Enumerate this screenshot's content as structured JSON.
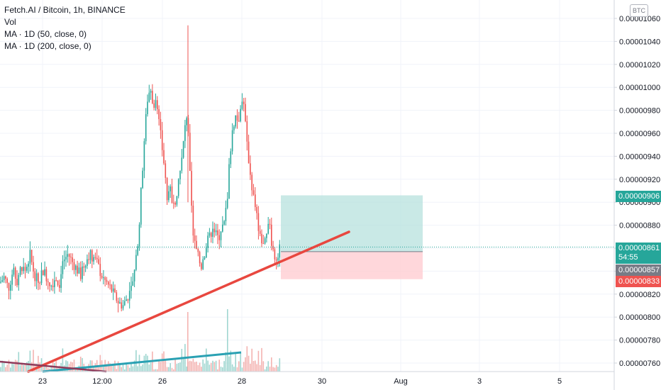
{
  "legend": {
    "title": "Fetch.AI / Bitcoin, 1h, BINANCE",
    "vol": "Vol",
    "ma50": "MA · 1D (50, close, 0)",
    "ma200": "MA · 1D (200, close, 0)"
  },
  "currency_badge": "BTC",
  "price_axis": {
    "ticks": [
      "0.00001060",
      "0.00001040",
      "0.00001020",
      "0.00001000",
      "0.00000980",
      "0.00000960",
      "0.00000940",
      "0.00000920",
      "0.00000900",
      "0.00000880",
      "0.00000860",
      "0.00000840",
      "0.00000820",
      "0.00000800",
      "0.00000780",
      "0.00000760"
    ],
    "tick_values": [
      1060,
      1040,
      1020,
      1000,
      980,
      960,
      940,
      920,
      900,
      880,
      860,
      840,
      820,
      800,
      780,
      760
    ],
    "current_price": "0.00000861",
    "countdown": "54:55",
    "target_price": "0.00000906",
    "entry_price": "0.00000857",
    "stop_price": "0.00000833"
  },
  "time_axis": {
    "labels": [
      "23",
      "12:00",
      "26",
      "28",
      "30",
      "Aug",
      "3",
      "5"
    ]
  },
  "colors": {
    "up": "#26a69a",
    "down": "#ef5350",
    "trendline": "#e8473f",
    "target_zone": "#b2dfdb",
    "stop_zone": "#ffcdd2",
    "ma_teal": "#2aa1b3",
    "ma_maroon": "#8e3a5a",
    "current_price_bg": "#26a69a",
    "entry_bg": "#787b86",
    "stop_bg": "#ef5350",
    "target_bg": "#26a69a"
  },
  "chart_data": {
    "type": "candlestick",
    "title": "Fetch.AI / Bitcoin, 1h, BINANCE",
    "ylim": [
      756,
      1072
    ],
    "y_unit_note_scale": 1e-08,
    "x_labels": [
      "23",
      "12:00",
      "26",
      "28",
      "30",
      "Aug",
      "3",
      "5"
    ],
    "close_path": [
      [
        0,
        830
      ],
      [
        6,
        835
      ],
      [
        12,
        825
      ],
      [
        18,
        840
      ],
      [
        24,
        832
      ],
      [
        30,
        845
      ],
      [
        36,
        840
      ],
      [
        42,
        855
      ],
      [
        48,
        838
      ],
      [
        54,
        830
      ],
      [
        60,
        842
      ],
      [
        66,
        835
      ],
      [
        72,
        828
      ],
      [
        78,
        835
      ],
      [
        84,
        830
      ],
      [
        90,
        850
      ],
      [
        96,
        855
      ],
      [
        102,
        848
      ],
      [
        108,
        842
      ],
      [
        114,
        836
      ],
      [
        120,
        848
      ],
      [
        126,
        855
      ],
      [
        132,
        852
      ],
      [
        138,
        845
      ],
      [
        144,
        835
      ],
      [
        150,
        830
      ],
      [
        156,
        825
      ],
      [
        162,
        818
      ],
      [
        168,
        812
      ],
      [
        174,
        810
      ],
      [
        180,
        818
      ],
      [
        186,
        825
      ],
      [
        192,
        850
      ],
      [
        196,
        880
      ],
      [
        200,
        920
      ],
      [
        204,
        960
      ],
      [
        208,
        990
      ],
      [
        212,
        1000
      ],
      [
        216,
        985
      ],
      [
        220,
        990
      ],
      [
        224,
        970
      ],
      [
        228,
        950
      ],
      [
        232,
        930
      ],
      [
        236,
        900
      ],
      [
        240,
        910
      ],
      [
        244,
        895
      ],
      [
        248,
        905
      ],
      [
        252,
        920
      ],
      [
        256,
        935
      ],
      [
        260,
        960
      ],
      [
        264,
        980
      ],
      [
        268,
        920
      ],
      [
        272,
        870
      ],
      [
        276,
        860
      ],
      [
        280,
        850
      ],
      [
        284,
        845
      ],
      [
        288,
        855
      ],
      [
        292,
        865
      ],
      [
        296,
        870
      ],
      [
        300,
        880
      ],
      [
        304,
        872
      ],
      [
        308,
        868
      ],
      [
        312,
        878
      ],
      [
        316,
        880
      ],
      [
        320,
        900
      ],
      [
        324,
        940
      ],
      [
        328,
        965
      ],
      [
        332,
        975
      ],
      [
        336,
        970
      ],
      [
        340,
        990
      ],
      [
        344,
        985
      ],
      [
        348,
        950
      ],
      [
        352,
        930
      ],
      [
        356,
        910
      ],
      [
        360,
        895
      ],
      [
        364,
        880
      ],
      [
        368,
        870
      ],
      [
        372,
        860
      ],
      [
        376,
        870
      ],
      [
        380,
        882
      ],
      [
        384,
        860
      ],
      [
        388,
        850
      ],
      [
        392,
        855
      ],
      [
        396,
        861
      ]
    ],
    "price_high": 1054,
    "price_low": 810,
    "current_price": 861,
    "position": {
      "entry": 857,
      "target": 906,
      "stop": 833
    }
  }
}
